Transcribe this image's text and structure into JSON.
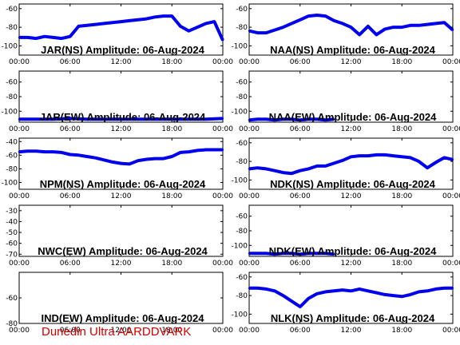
{
  "footer": "Dunedin Ultra AARDDVARK",
  "colors": {
    "trace": "#0000ee",
    "footer": "#d40000",
    "axis": "#000000",
    "background": "#ffffff"
  },
  "chart_data": [
    {
      "type": "line",
      "title": "JAR(NS) Amplitude: 06-Aug-2024",
      "xticks": [
        "00:00",
        "06:00",
        "12:00",
        "18:00",
        "00:00"
      ],
      "xlim": [
        0,
        24
      ],
      "ylim": [
        -110,
        -55
      ],
      "yticks": [
        -100,
        -80,
        -60
      ],
      "x": [
        0,
        1,
        2,
        3,
        4,
        5,
        6,
        7,
        8,
        9,
        10,
        11,
        12,
        13,
        14,
        15,
        16,
        17,
        18,
        19,
        20,
        21,
        22,
        23,
        24
      ],
      "y": [
        -91,
        -91,
        -92,
        -90,
        -91,
        -92,
        -90,
        -79,
        -78,
        -77,
        -76,
        -75,
        -74,
        -73,
        -72,
        -71,
        -69,
        -68,
        -68,
        -79,
        -84,
        -80,
        -76,
        -74,
        -94
      ]
    },
    {
      "type": "line",
      "title": "NAA(NS) Amplitude: 06-Aug-2024",
      "xticks": [
        "00:00",
        "06:00",
        "12:00",
        "18:00",
        "00:00"
      ],
      "xlim": [
        0,
        24
      ],
      "ylim": [
        -110,
        -55
      ],
      "yticks": [
        -100,
        -80,
        -60
      ],
      "x": [
        0,
        1,
        2,
        3,
        4,
        5,
        6,
        7,
        8,
        9,
        10,
        11,
        12,
        13,
        14,
        15,
        16,
        17,
        18,
        19,
        20,
        21,
        22,
        23,
        24
      ],
      "y": [
        -84,
        -86,
        -86,
        -83,
        -80,
        -76,
        -72,
        -68,
        -67,
        -68,
        -73,
        -76,
        -80,
        -88,
        -79,
        -88,
        -82,
        -80,
        -80,
        -78,
        -78,
        -77,
        -76,
        -75,
        -83
      ]
    },
    {
      "type": "line",
      "title": "JAR(EW) Amplitude: 06-Aug-2024",
      "xticks": [
        "00:00",
        "06:00",
        "12:00",
        "18:00",
        "00:00"
      ],
      "xlim": [
        0,
        24
      ],
      "ylim": [
        -115,
        -45
      ],
      "yticks": [
        -100,
        -80,
        -60
      ],
      "x": [
        0,
        2,
        4,
        6,
        8,
        10,
        12,
        14,
        16,
        18,
        20,
        22,
        24
      ],
      "y": [
        -111,
        -111,
        -111,
        -110,
        -111,
        -111,
        -111,
        -111,
        -111,
        -111,
        -111,
        -111,
        -110
      ]
    },
    {
      "type": "line",
      "title": "NAA(EW) Amplitude: 06-Aug-2024",
      "xticks": [
        "00:00",
        "06:00",
        "12:00",
        "18:00",
        "00:00"
      ],
      "xlim": [
        0,
        24
      ],
      "ylim": [
        -115,
        -45
      ],
      "yticks": [
        -100,
        -80,
        -60
      ],
      "x": [
        0,
        1,
        2,
        3,
        4,
        5,
        6,
        7,
        8,
        9,
        10
      ],
      "y": [
        -112,
        -111,
        -111,
        -112,
        -111,
        -111,
        -112,
        -111,
        -111,
        -112,
        -111
      ]
    },
    {
      "type": "line",
      "title": "NPM(NS) Amplitude: 06-Aug-2024",
      "xticks": [
        "00:00",
        "06:00",
        "12:00",
        "18:00",
        "00:00"
      ],
      "xlim": [
        0,
        24
      ],
      "ylim": [
        -110,
        -35
      ],
      "yticks": [
        -100,
        -80,
        -60,
        -40
      ],
      "x": [
        0,
        1,
        2,
        3,
        4,
        5,
        6,
        7,
        8,
        9,
        10,
        11,
        12,
        13,
        14,
        15,
        16,
        17,
        18,
        19,
        20,
        21,
        22,
        23,
        24
      ],
      "y": [
        -55,
        -54,
        -54,
        -55,
        -55,
        -56,
        -59,
        -60,
        -62,
        -64,
        -67,
        -70,
        -72,
        -73,
        -68,
        -66,
        -65,
        -65,
        -62,
        -56,
        -55,
        -53,
        -52,
        -52,
        -52
      ]
    },
    {
      "type": "line",
      "title": "NDK(NS) Amplitude: 06-Aug-2024",
      "xticks": [
        "00:00",
        "06:00",
        "12:00",
        "18:00",
        "00:00"
      ],
      "xlim": [
        0,
        24
      ],
      "ylim": [
        -110,
        -55
      ],
      "yticks": [
        -100,
        -80,
        -60
      ],
      "x": [
        0,
        1,
        2,
        3,
        4,
        5,
        6,
        7,
        8,
        9,
        10,
        11,
        12,
        13,
        14,
        15,
        16,
        17,
        18,
        19,
        20,
        21,
        22,
        23,
        24
      ],
      "y": [
        -88,
        -87,
        -88,
        -90,
        -92,
        -93,
        -90,
        -88,
        -85,
        -85,
        -82,
        -79,
        -75,
        -74,
        -74,
        -73,
        -73,
        -74,
        -75,
        -76,
        -80,
        -87,
        -81,
        -76,
        -78
      ]
    },
    {
      "type": "line",
      "title": "NWC(EW) Amplitude: 06-Aug-2024",
      "xticks": [
        "00:00",
        "06:00",
        "12:00",
        "18:00",
        "00:00"
      ],
      "xlim": [
        0,
        24
      ],
      "ylim": [
        -72,
        -25
      ],
      "yticks": [
        -70,
        -60,
        -50,
        -40,
        -30
      ],
      "x": [],
      "y": []
    },
    {
      "type": "line",
      "title": "NDK(EW) Amplitude: 06-Aug-2024",
      "xticks": [
        "00:00",
        "06:00",
        "12:00",
        "18:00",
        "00:00"
      ],
      "xlim": [
        0,
        24
      ],
      "ylim": [
        -115,
        -45
      ],
      "yticks": [
        -100,
        -80,
        -60
      ],
      "x": [
        0,
        1,
        2,
        3,
        4,
        5,
        6,
        7,
        8,
        9,
        10
      ],
      "y": [
        -111,
        -111,
        -111,
        -112,
        -111,
        -111,
        -112,
        -111,
        -111,
        -111,
        -112
      ]
    },
    {
      "type": "line",
      "title": "IND(EW) Amplitude: 06-Aug-2024",
      "xticks": [
        "00:00",
        "06:00",
        "12:00",
        "18:00",
        "00:00"
      ],
      "xlim": [
        0,
        24
      ],
      "ylim": [
        -80,
        -40
      ],
      "yticks": [
        -80,
        -60
      ],
      "x": [],
      "y": []
    },
    {
      "type": "line",
      "title": "NLK(NS) Amplitude: 06-Aug-2024",
      "xticks": [
        "00:00",
        "06:00",
        "12:00",
        "18:00",
        "00:00"
      ],
      "xlim": [
        0,
        24
      ],
      "ylim": [
        -110,
        -55
      ],
      "yticks": [
        -100,
        -80,
        -60
      ],
      "x": [
        0,
        1,
        2,
        3,
        4,
        5,
        6,
        7,
        8,
        9,
        10,
        11,
        12,
        13,
        14,
        15,
        16,
        17,
        18,
        19,
        20,
        21,
        22,
        23,
        24
      ],
      "y": [
        -72,
        -72,
        -73,
        -75,
        -80,
        -86,
        -92,
        -83,
        -78,
        -76,
        -75,
        -74,
        -75,
        -73,
        -75,
        -77,
        -79,
        -80,
        -81,
        -79,
        -76,
        -75,
        -73,
        -72,
        -72
      ]
    }
  ]
}
